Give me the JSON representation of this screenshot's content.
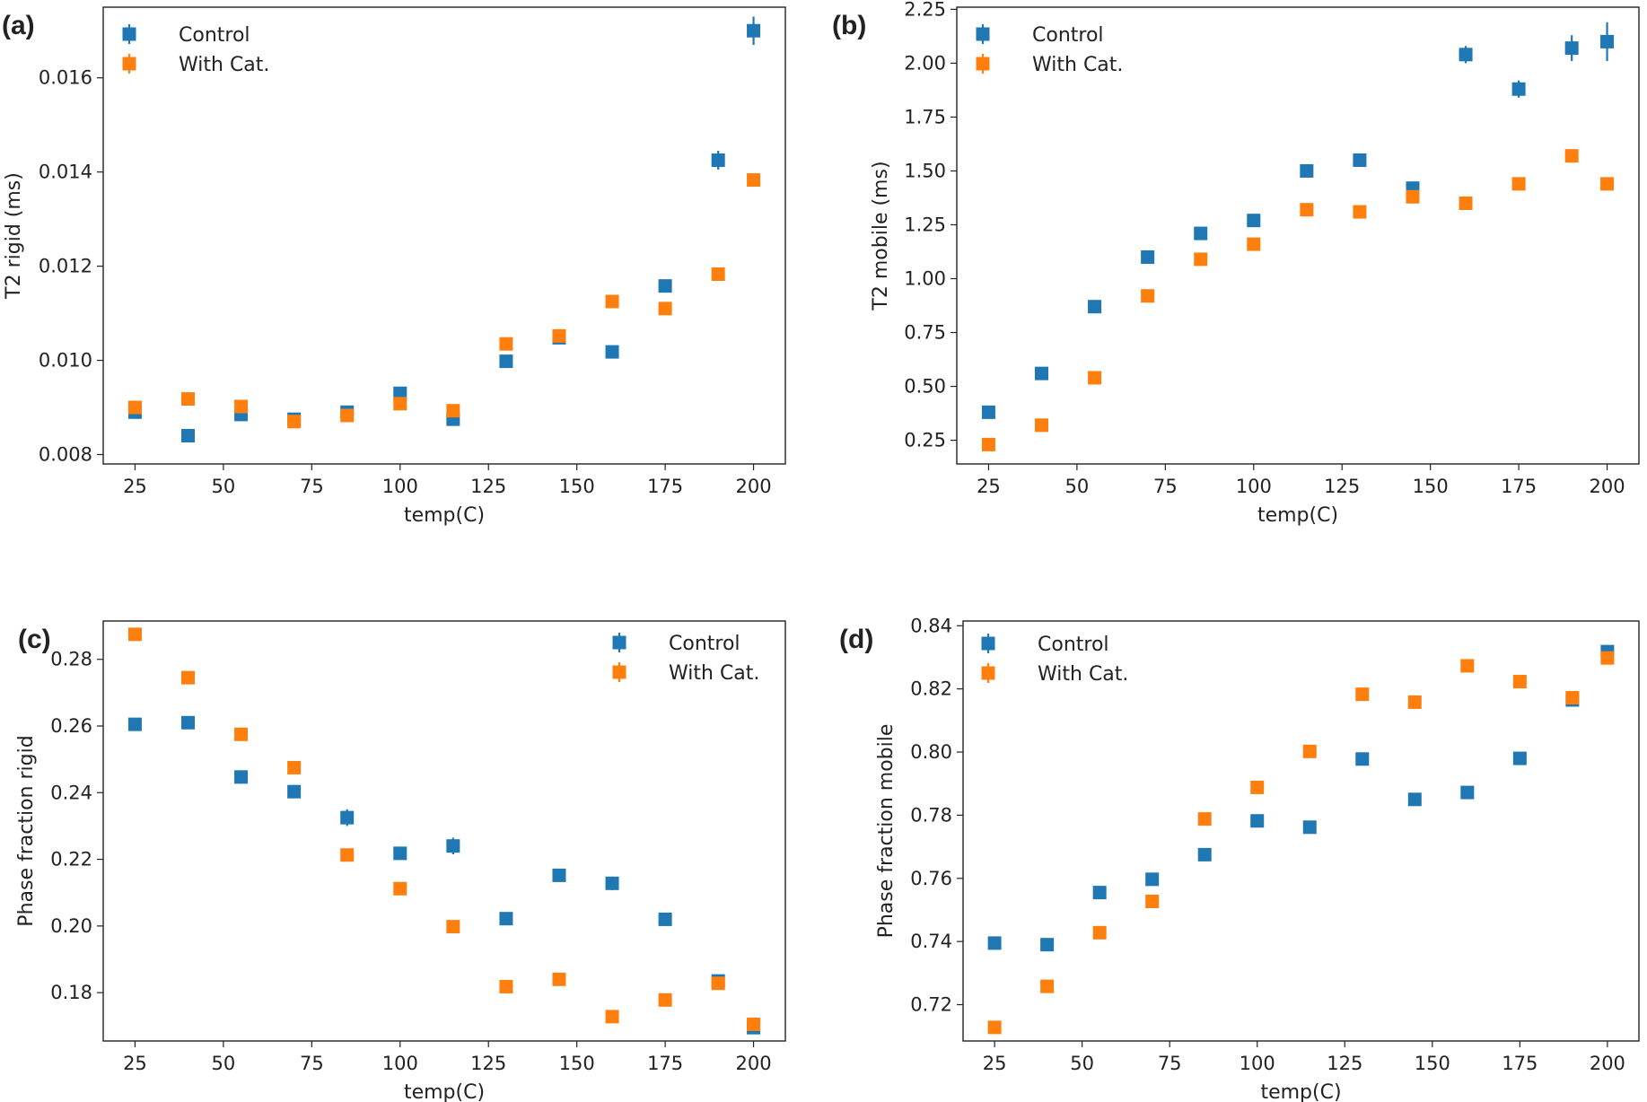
{
  "colors": {
    "control": "#1f77b4",
    "with_cat": "#ff7f0e"
  },
  "chart_data": [
    {
      "panel": "(a)",
      "type": "scatter",
      "xlabel": "temp(C)",
      "ylabel": "T2 rigid (ms)",
      "xlim": [
        16,
        209
      ],
      "ylim": [
        0.0078,
        0.0175
      ],
      "x_ticks": [
        25,
        50,
        75,
        100,
        125,
        150,
        175,
        200
      ],
      "x_tick_labels": [
        "25",
        "50",
        "75",
        "100",
        "125",
        "150",
        "175",
        "200"
      ],
      "y_ticks": [
        0.008,
        0.01,
        0.012,
        0.014,
        0.016
      ],
      "y_tick_labels": [
        "0.008",
        "0.010",
        "0.012",
        "0.014",
        "0.016"
      ],
      "legend_position": "top-left",
      "x": [
        25,
        40,
        55,
        70,
        85,
        100,
        115,
        130,
        145,
        160,
        175,
        190,
        200
      ],
      "series": [
        {
          "name": "Control",
          "color_key": "control",
          "values": [
            0.0089,
            0.0084,
            0.00885,
            0.00875,
            0.0089,
            0.0093,
            0.00875,
            0.00998,
            0.01048,
            0.01018,
            0.01158,
            0.01425,
            0.017
          ],
          "errors": [
            5e-05,
            5e-05,
            5e-05,
            5e-05,
            5e-05,
            5e-05,
            5e-05,
            5e-05,
            5e-05,
            5e-05,
            0.0001,
            0.0002,
            0.0003
          ]
        },
        {
          "name": "With Cat.",
          "color_key": "with_cat",
          "values": [
            0.009,
            0.00918,
            0.00902,
            0.0087,
            0.00883,
            0.00908,
            0.00893,
            0.01035,
            0.01052,
            0.01125,
            0.0111,
            0.01183,
            0.01383
          ],
          "errors": [
            5e-05,
            5e-05,
            5e-05,
            5e-05,
            5e-05,
            5e-05,
            5e-05,
            5e-05,
            5e-05,
            5e-05,
            5e-05,
            5e-05,
            0.00012
          ]
        }
      ]
    },
    {
      "panel": "(b)",
      "type": "scatter",
      "xlabel": "temp(C)",
      "ylabel": "T2 mobile (ms)",
      "xlim": [
        16,
        209
      ],
      "ylim": [
        0.14,
        2.26
      ],
      "x_ticks": [
        25,
        50,
        75,
        100,
        125,
        150,
        175,
        200
      ],
      "x_tick_labels": [
        "25",
        "50",
        "75",
        "100",
        "125",
        "150",
        "175",
        "200"
      ],
      "y_ticks": [
        0.25,
        0.5,
        0.75,
        1.0,
        1.25,
        1.5,
        1.75,
        2.0,
        2.25
      ],
      "y_tick_labels": [
        "0.25",
        "0.50",
        "0.75",
        "1.00",
        "1.25",
        "1.50",
        "1.75",
        "2.00",
        "2.25"
      ],
      "legend_position": "top-left",
      "x": [
        25,
        40,
        55,
        70,
        85,
        100,
        115,
        130,
        145,
        160,
        175,
        190,
        200
      ],
      "series": [
        {
          "name": "Control",
          "color_key": "control",
          "values": [
            0.38,
            0.56,
            0.87,
            1.1,
            1.21,
            1.27,
            1.5,
            1.55,
            1.42,
            2.04,
            1.88,
            2.07,
            2.1
          ],
          "errors": [
            0.01,
            0.01,
            0.01,
            0.01,
            0.01,
            0.01,
            0.01,
            0.01,
            0.02,
            0.04,
            0.04,
            0.06,
            0.09
          ]
        },
        {
          "name": "With Cat.",
          "color_key": "with_cat",
          "values": [
            0.23,
            0.32,
            0.54,
            0.92,
            1.09,
            1.16,
            1.32,
            1.31,
            1.38,
            1.35,
            1.44,
            1.57,
            1.44
          ],
          "errors": [
            0.01,
            0.01,
            0.01,
            0.01,
            0.01,
            0.01,
            0.01,
            0.01,
            0.01,
            0.01,
            0.01,
            0.01,
            0.01
          ]
        }
      ]
    },
    {
      "panel": "(c)",
      "type": "scatter",
      "xlabel": "temp(C)",
      "ylabel": "Phase fraction rigid",
      "xlim": [
        16,
        209
      ],
      "ylim": [
        0.1655,
        0.2915
      ],
      "x_ticks": [
        25,
        50,
        75,
        100,
        125,
        150,
        175,
        200
      ],
      "x_tick_labels": [
        "25",
        "50",
        "75",
        "100",
        "125",
        "150",
        "175",
        "200"
      ],
      "y_ticks": [
        0.18,
        0.2,
        0.22,
        0.24,
        0.26,
        0.28
      ],
      "y_tick_labels": [
        "0.18",
        "0.20",
        "0.22",
        "0.24",
        "0.26",
        "0.28"
      ],
      "legend_position": "top-right",
      "x": [
        25,
        40,
        55,
        70,
        85,
        100,
        115,
        130,
        145,
        160,
        175,
        190,
        200
      ],
      "series": [
        {
          "name": "Control",
          "color_key": "control",
          "values": [
            0.2605,
            0.261,
            0.2447,
            0.2403,
            0.2325,
            0.2218,
            0.224,
            0.2022,
            0.2152,
            0.2128,
            0.202,
            0.1835,
            0.1695
          ],
          "errors": [
            0.001,
            0.0015,
            0.002,
            0.002,
            0.0025,
            0.0015,
            0.0025,
            0.0015,
            0.001,
            0.002,
            0.001,
            0.001,
            0.001
          ]
        },
        {
          "name": "With Cat.",
          "color_key": "with_cat",
          "values": [
            0.2875,
            0.2745,
            0.2575,
            0.2475,
            0.2213,
            0.2112,
            0.1998,
            0.1818,
            0.184,
            0.1728,
            0.1778,
            0.1828,
            0.1705
          ],
          "errors": [
            0.001,
            0.001,
            0.001,
            0.0015,
            0.001,
            0.001,
            0.001,
            0.001,
            0.001,
            0.001,
            0.001,
            0.001,
            0.001
          ]
        }
      ]
    },
    {
      "panel": "(d)",
      "type": "scatter",
      "xlabel": "temp(C)",
      "ylabel": "Phase fraction mobile",
      "xlim": [
        16,
        209
      ],
      "ylim": [
        0.7085,
        0.8415
      ],
      "x_ticks": [
        25,
        50,
        75,
        100,
        125,
        150,
        175,
        200
      ],
      "x_tick_labels": [
        "25",
        "50",
        "75",
        "100",
        "125",
        "150",
        "175",
        "200"
      ],
      "y_ticks": [
        0.72,
        0.74,
        0.76,
        0.78,
        0.8,
        0.82,
        0.84
      ],
      "y_tick_labels": [
        "0.72",
        "0.74",
        "0.76",
        "0.78",
        "0.80",
        "0.82",
        "0.84"
      ],
      "legend_position": "top-left",
      "x": [
        25,
        40,
        55,
        70,
        85,
        100,
        115,
        130,
        145,
        160,
        175,
        190,
        200
      ],
      "series": [
        {
          "name": "Control",
          "color_key": "control",
          "values": [
            0.7395,
            0.739,
            0.7555,
            0.7597,
            0.7675,
            0.7782,
            0.7762,
            0.7978,
            0.785,
            0.7872,
            0.798,
            0.8165,
            0.8318
          ],
          "errors": [
            0.001,
            0.001,
            0.001,
            0.001,
            0.0015,
            0.001,
            0.0015,
            0.001,
            0.001,
            0.0015,
            0.001,
            0.001,
            0.0015
          ]
        },
        {
          "name": "With Cat.",
          "color_key": "with_cat",
          "values": [
            0.7128,
            0.7258,
            0.7428,
            0.7527,
            0.7788,
            0.7888,
            0.8002,
            0.8183,
            0.8158,
            0.8273,
            0.8223,
            0.8172,
            0.8298
          ],
          "errors": [
            0.001,
            0.001,
            0.001,
            0.001,
            0.001,
            0.001,
            0.001,
            0.001,
            0.001,
            0.001,
            0.001,
            0.001,
            0.001
          ]
        }
      ]
    }
  ]
}
